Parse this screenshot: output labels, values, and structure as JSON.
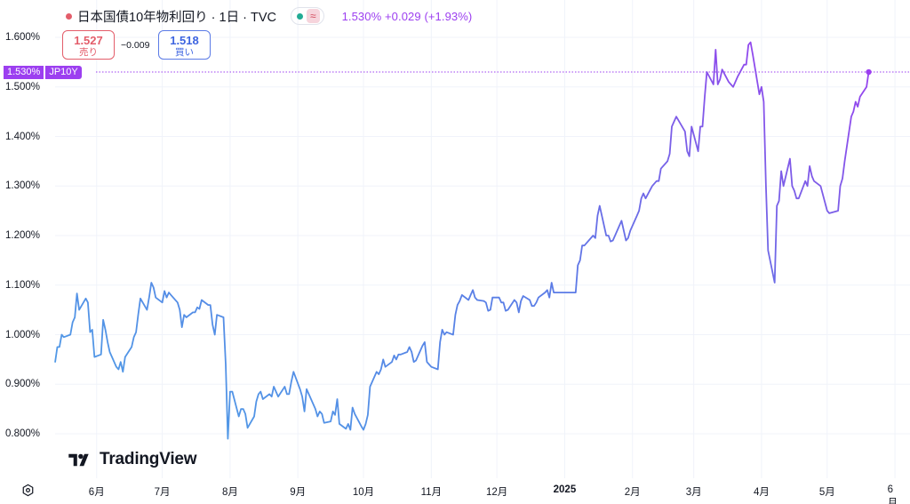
{
  "header": {
    "title": "日本国債10年物利回り · 1日 · TVC",
    "title_dot_color": "#e35d6a",
    "status_dot_color": "#22ab94",
    "approx_symbol": "≈",
    "last": "1.530%",
    "change": "+0.029",
    "change_pct": "(+1.93%)"
  },
  "quote": {
    "sell_value": "1.527",
    "sell_label": "売り",
    "spread": "−0.009",
    "buy_value": "1.518",
    "buy_label": "買い"
  },
  "current_label": {
    "value": "1.530%",
    "symbol": "JP10Y"
  },
  "logo": {
    "text": "TradingView"
  },
  "colors": {
    "line_start": "#4ea0e6",
    "line_mid": "#5b7be6",
    "line_end": "#9c3ff0",
    "grid": "#f0f3fa"
  },
  "chart_data": {
    "type": "line",
    "title": "日本国債10年物利回り · 1日 · TVC",
    "y_ticks": [
      "1.600%",
      "1.500%",
      "1.400%",
      "1.300%",
      "1.200%",
      "1.100%",
      "1.000%",
      "0.900%",
      "0.800%"
    ],
    "y_tick_values": [
      1.6,
      1.5,
      1.4,
      1.3,
      1.2,
      1.1,
      1.0,
      0.9,
      0.8
    ],
    "ylim": [
      0.725,
      1.625
    ],
    "x_tick_labels": [
      "6月",
      "7月",
      "8月",
      "9月",
      "10月",
      "11月",
      "12月",
      "2025",
      "2月",
      "3月",
      "4月",
      "5月",
      "6月"
    ],
    "x_tick_dates": [
      "2024-06-01",
      "2024-07-01",
      "2024-08-01",
      "2024-09-01",
      "2024-10-01",
      "2024-11-01",
      "2024-12-01",
      "2025-01-01",
      "2025-02-01",
      "2025-03-01",
      "2025-04-01",
      "2025-05-01",
      "2025-06-01"
    ],
    "x_bold": [
      "2025"
    ],
    "xlim": [
      "2024-05-13",
      "2025-06-03"
    ],
    "grid": true,
    "series": [
      {
        "points": [
          [
            "2024-05-13",
            0.944
          ],
          [
            "2024-05-14",
            0.975
          ],
          [
            "2024-05-15",
            0.975
          ],
          [
            "2024-05-16",
            1.0
          ],
          [
            "2024-05-17",
            0.995
          ],
          [
            "2024-05-20",
            1.0
          ],
          [
            "2024-05-21",
            1.025
          ],
          [
            "2024-05-22",
            1.035
          ],
          [
            "2024-05-23",
            1.083
          ],
          [
            "2024-05-24",
            1.05
          ],
          [
            "2024-05-27",
            1.073
          ],
          [
            "2024-05-28",
            1.065
          ],
          [
            "2024-05-29",
            1.005
          ],
          [
            "2024-05-30",
            1.01
          ],
          [
            "2024-05-31",
            0.955
          ],
          [
            "2024-06-03",
            0.96
          ],
          [
            "2024-06-04",
            1.03
          ],
          [
            "2024-06-05",
            1.01
          ],
          [
            "2024-06-06",
            0.985
          ],
          [
            "2024-06-07",
            0.965
          ],
          [
            "2024-06-10",
            0.935
          ],
          [
            "2024-06-11",
            0.93
          ],
          [
            "2024-06-12",
            0.945
          ],
          [
            "2024-06-13",
            0.925
          ],
          [
            "2024-06-14",
            0.955
          ],
          [
            "2024-06-17",
            0.975
          ],
          [
            "2024-06-18",
            0.995
          ],
          [
            "2024-06-19",
            1.005
          ],
          [
            "2024-06-20",
            1.04
          ],
          [
            "2024-06-21",
            1.073
          ],
          [
            "2024-06-24",
            1.05
          ],
          [
            "2024-06-25",
            1.075
          ],
          [
            "2024-06-26",
            1.105
          ],
          [
            "2024-06-27",
            1.095
          ],
          [
            "2024-06-28",
            1.075
          ],
          [
            "2024-07-01",
            1.065
          ],
          [
            "2024-07-02",
            1.088
          ],
          [
            "2024-07-03",
            1.075
          ],
          [
            "2024-07-04",
            1.085
          ],
          [
            "2024-07-05",
            1.08
          ],
          [
            "2024-07-08",
            1.065
          ],
          [
            "2024-07-09",
            1.05
          ],
          [
            "2024-07-10",
            1.015
          ],
          [
            "2024-07-11",
            1.04
          ],
          [
            "2024-07-12",
            1.035
          ],
          [
            "2024-07-15",
            1.045
          ],
          [
            "2024-07-16",
            1.045
          ],
          [
            "2024-07-17",
            1.055
          ],
          [
            "2024-07-18",
            1.052
          ],
          [
            "2024-07-19",
            1.07
          ],
          [
            "2024-07-22",
            1.06
          ],
          [
            "2024-07-23",
            1.06
          ],
          [
            "2024-07-24",
            1.02
          ],
          [
            "2024-07-25",
            1.0
          ],
          [
            "2024-07-26",
            1.04
          ],
          [
            "2024-07-29",
            1.035
          ],
          [
            "2024-07-30",
            0.94
          ],
          [
            "2024-07-31",
            0.79
          ],
          [
            "2024-08-01",
            0.885
          ],
          [
            "2024-08-02",
            0.885
          ],
          [
            "2024-08-05",
            0.835
          ],
          [
            "2024-08-06",
            0.85
          ],
          [
            "2024-08-07",
            0.85
          ],
          [
            "2024-08-08",
            0.84
          ],
          [
            "2024-08-09",
            0.812
          ],
          [
            "2024-08-12",
            0.835
          ],
          [
            "2024-08-13",
            0.865
          ],
          [
            "2024-08-14",
            0.88
          ],
          [
            "2024-08-15",
            0.885
          ],
          [
            "2024-08-16",
            0.87
          ],
          [
            "2024-08-19",
            0.88
          ],
          [
            "2024-08-20",
            0.875
          ],
          [
            "2024-08-21",
            0.895
          ],
          [
            "2024-08-22",
            0.885
          ],
          [
            "2024-08-23",
            0.875
          ],
          [
            "2024-08-26",
            0.895
          ],
          [
            "2024-08-27",
            0.88
          ],
          [
            "2024-08-28",
            0.88
          ],
          [
            "2024-08-29",
            0.905
          ],
          [
            "2024-08-30",
            0.925
          ],
          [
            "2024-09-02",
            0.89
          ],
          [
            "2024-09-03",
            0.875
          ],
          [
            "2024-09-04",
            0.845
          ],
          [
            "2024-09-05",
            0.89
          ],
          [
            "2024-09-06",
            0.88
          ],
          [
            "2024-09-09",
            0.85
          ],
          [
            "2024-09-10",
            0.835
          ],
          [
            "2024-09-11",
            0.845
          ],
          [
            "2024-09-12",
            0.84
          ],
          [
            "2024-09-13",
            0.822
          ],
          [
            "2024-09-16",
            0.825
          ],
          [
            "2024-09-17",
            0.845
          ],
          [
            "2024-09-18",
            0.838
          ],
          [
            "2024-09-19",
            0.87
          ],
          [
            "2024-09-20",
            0.82
          ],
          [
            "2024-09-23",
            0.81
          ],
          [
            "2024-09-24",
            0.82
          ],
          [
            "2024-09-25",
            0.808
          ],
          [
            "2024-09-26",
            0.853
          ],
          [
            "2024-09-27",
            0.84
          ],
          [
            "2024-09-30",
            0.815
          ],
          [
            "2024-10-01",
            0.808
          ],
          [
            "2024-10-02",
            0.82
          ],
          [
            "2024-10-03",
            0.838
          ],
          [
            "2024-10-04",
            0.895
          ],
          [
            "2024-10-07",
            0.925
          ],
          [
            "2024-10-08",
            0.92
          ],
          [
            "2024-10-09",
            0.93
          ],
          [
            "2024-10-10",
            0.95
          ],
          [
            "2024-10-11",
            0.935
          ],
          [
            "2024-10-14",
            0.945
          ],
          [
            "2024-10-15",
            0.958
          ],
          [
            "2024-10-16",
            0.95
          ],
          [
            "2024-10-17",
            0.96
          ],
          [
            "2024-10-18",
            0.96
          ],
          [
            "2024-10-21",
            0.965
          ],
          [
            "2024-10-22",
            0.975
          ],
          [
            "2024-10-23",
            0.965
          ],
          [
            "2024-10-24",
            0.945
          ],
          [
            "2024-10-25",
            0.948
          ],
          [
            "2024-10-28",
            0.978
          ],
          [
            "2024-10-29",
            0.985
          ],
          [
            "2024-10-30",
            0.945
          ],
          [
            "2024-10-31",
            0.94
          ],
          [
            "2024-11-01",
            0.935
          ],
          [
            "2024-11-04",
            0.93
          ],
          [
            "2024-11-05",
            0.985
          ],
          [
            "2024-11-06",
            1.01
          ],
          [
            "2024-11-07",
            1.0
          ],
          [
            "2024-11-08",
            1.005
          ],
          [
            "2024-11-11",
            1.0
          ],
          [
            "2024-11-12",
            1.04
          ],
          [
            "2024-11-13",
            1.06
          ],
          [
            "2024-11-14",
            1.068
          ],
          [
            "2024-11-15",
            1.08
          ],
          [
            "2024-11-18",
            1.07
          ],
          [
            "2024-11-19",
            1.08
          ],
          [
            "2024-11-20",
            1.09
          ],
          [
            "2024-11-21",
            1.075
          ],
          [
            "2024-11-22",
            1.07
          ],
          [
            "2024-11-25",
            1.068
          ],
          [
            "2024-11-26",
            1.065
          ],
          [
            "2024-11-27",
            1.048
          ],
          [
            "2024-11-28",
            1.05
          ],
          [
            "2024-11-29",
            1.075
          ],
          [
            "2024-12-02",
            1.075
          ],
          [
            "2024-12-03",
            1.065
          ],
          [
            "2024-12-04",
            1.065
          ],
          [
            "2024-12-05",
            1.048
          ],
          [
            "2024-12-06",
            1.05
          ],
          [
            "2024-12-09",
            1.07
          ],
          [
            "2024-12-10",
            1.065
          ],
          [
            "2024-12-11",
            1.045
          ],
          [
            "2024-12-12",
            1.068
          ],
          [
            "2024-12-13",
            1.078
          ],
          [
            "2024-12-16",
            1.07
          ],
          [
            "2024-12-17",
            1.058
          ],
          [
            "2024-12-18",
            1.058
          ],
          [
            "2024-12-19",
            1.065
          ],
          [
            "2024-12-20",
            1.075
          ],
          [
            "2024-12-23",
            1.085
          ],
          [
            "2024-12-24",
            1.09
          ],
          [
            "2024-12-25",
            1.075
          ],
          [
            "2024-12-26",
            1.105
          ],
          [
            "2024-12-27",
            1.085
          ],
          [
            "2025-01-06",
            1.085
          ],
          [
            "2025-01-07",
            1.14
          ],
          [
            "2025-01-08",
            1.15
          ],
          [
            "2025-01-09",
            1.18
          ],
          [
            "2025-01-10",
            1.18
          ],
          [
            "2025-01-14",
            1.2
          ],
          [
            "2025-01-15",
            1.195
          ],
          [
            "2025-01-16",
            1.24
          ],
          [
            "2025-01-17",
            1.26
          ],
          [
            "2025-01-20",
            1.2
          ],
          [
            "2025-01-21",
            1.2
          ],
          [
            "2025-01-22",
            1.188
          ],
          [
            "2025-01-23",
            1.19
          ],
          [
            "2025-01-24",
            1.2
          ],
          [
            "2025-01-27",
            1.23
          ],
          [
            "2025-01-28",
            1.21
          ],
          [
            "2025-01-29",
            1.19
          ],
          [
            "2025-01-30",
            1.195
          ],
          [
            "2025-01-31",
            1.21
          ],
          [
            "2025-02-03",
            1.24
          ],
          [
            "2025-02-04",
            1.25
          ],
          [
            "2025-02-05",
            1.275
          ],
          [
            "2025-02-06",
            1.285
          ],
          [
            "2025-02-07",
            1.275
          ],
          [
            "2025-02-10",
            1.3
          ],
          [
            "2025-02-12",
            1.31
          ],
          [
            "2025-02-13",
            1.31
          ],
          [
            "2025-02-14",
            1.335
          ],
          [
            "2025-02-17",
            1.35
          ],
          [
            "2025-02-18",
            1.365
          ],
          [
            "2025-02-19",
            1.42
          ],
          [
            "2025-02-20",
            1.43
          ],
          [
            "2025-02-21",
            1.44
          ],
          [
            "2025-02-25",
            1.41
          ],
          [
            "2025-02-26",
            1.37
          ],
          [
            "2025-02-27",
            1.36
          ],
          [
            "2025-02-28",
            1.42
          ],
          [
            "2025-03-03",
            1.37
          ],
          [
            "2025-03-04",
            1.42
          ],
          [
            "2025-03-05",
            1.42
          ],
          [
            "2025-03-06",
            1.48
          ],
          [
            "2025-03-07",
            1.53
          ],
          [
            "2025-03-10",
            1.505
          ],
          [
            "2025-03-11",
            1.575
          ],
          [
            "2025-03-12",
            1.505
          ],
          [
            "2025-03-13",
            1.515
          ],
          [
            "2025-03-14",
            1.535
          ],
          [
            "2025-03-17",
            1.51
          ],
          [
            "2025-03-18",
            1.505
          ],
          [
            "2025-03-19",
            1.5
          ],
          [
            "2025-03-21",
            1.52
          ],
          [
            "2025-03-24",
            1.545
          ],
          [
            "2025-03-25",
            1.545
          ],
          [
            "2025-03-26",
            1.585
          ],
          [
            "2025-03-27",
            1.59
          ],
          [
            "2025-03-28",
            1.565
          ],
          [
            "2025-03-31",
            1.485
          ],
          [
            "2025-04-01",
            1.5
          ],
          [
            "2025-04-02",
            1.47
          ],
          [
            "2025-04-03",
            1.3
          ],
          [
            "2025-04-04",
            1.17
          ],
          [
            "2025-04-07",
            1.105
          ],
          [
            "2025-04-08",
            1.26
          ],
          [
            "2025-04-09",
            1.27
          ],
          [
            "2025-04-10",
            1.33
          ],
          [
            "2025-04-11",
            1.3
          ],
          [
            "2025-04-14",
            1.355
          ],
          [
            "2025-04-15",
            1.3
          ],
          [
            "2025-04-16",
            1.29
          ],
          [
            "2025-04-17",
            1.275
          ],
          [
            "2025-04-18",
            1.275
          ],
          [
            "2025-04-21",
            1.31
          ],
          [
            "2025-04-22",
            1.3
          ],
          [
            "2025-04-23",
            1.34
          ],
          [
            "2025-04-24",
            1.32
          ],
          [
            "2025-04-25",
            1.31
          ],
          [
            "2025-04-28",
            1.3
          ],
          [
            "2025-05-01",
            1.25
          ],
          [
            "2025-05-02",
            1.245
          ],
          [
            "2025-05-06",
            1.25
          ],
          [
            "2025-05-07",
            1.3
          ],
          [
            "2025-05-08",
            1.315
          ],
          [
            "2025-05-09",
            1.35
          ],
          [
            "2025-05-12",
            1.44
          ],
          [
            "2025-05-13",
            1.45
          ],
          [
            "2025-05-14",
            1.47
          ],
          [
            "2025-05-15",
            1.46
          ],
          [
            "2025-05-16",
            1.48
          ],
          [
            "2025-05-19",
            1.5
          ],
          [
            "2025-05-20",
            1.53
          ]
        ]
      }
    ],
    "last_value": 1.53
  }
}
